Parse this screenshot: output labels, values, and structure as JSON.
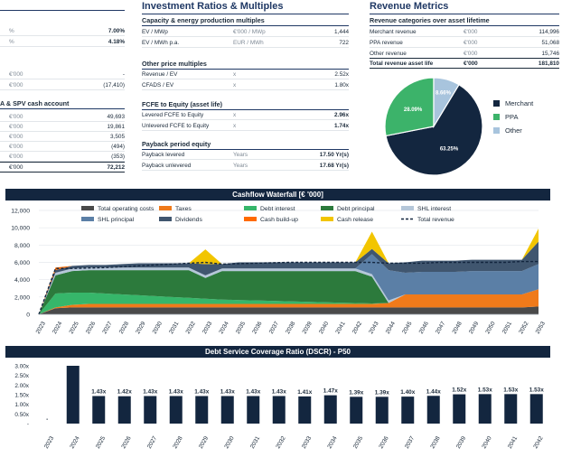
{
  "left_panel": {
    "rows_top": [
      {
        "unit": "%",
        "value": "7.00%",
        "bold": true
      },
      {
        "unit": "%",
        "value": "4.18%",
        "bold": true
      }
    ],
    "rows_mid": [
      {
        "unit": "€'000",
        "value": "-"
      },
      {
        "unit": "€'000",
        "value": "(17,410)"
      }
    ],
    "cash_title": "A & SPV cash account",
    "cash_rows": [
      {
        "unit": "€'000",
        "value": "49,693"
      },
      {
        "unit": "€'000",
        "value": "19,861"
      },
      {
        "unit": "€'000",
        "value": "3,505"
      },
      {
        "unit": "€'000",
        "value": "(494)"
      },
      {
        "unit": "€'000",
        "value": "(353)"
      }
    ],
    "cash_total": {
      "unit": "€'000",
      "value": "72,212"
    }
  },
  "investment": {
    "title": "Investment Ratios & Multiples",
    "capacity_title": "Capacity & energy production multiples",
    "capacity_rows": [
      {
        "label": "EV / MWp",
        "unit": "€'000 / MWp",
        "value": "1,444"
      },
      {
        "label": "EV / MWh p.a.",
        "unit": "EUR / MWh",
        "value": "722"
      }
    ],
    "other_title": "Other price multiples",
    "other_rows": [
      {
        "label": "Revenue / EV",
        "unit": "x",
        "value": "2.52x"
      },
      {
        "label": "CFADS / EV",
        "unit": "x",
        "value": "1.80x"
      }
    ],
    "fcfe_title": "FCFE to Equity (asset life)",
    "fcfe_rows": [
      {
        "label": "Levered FCFE to Equity",
        "unit": "x",
        "value": "2.96x"
      },
      {
        "label": "Unlevered FCFE to Equity",
        "unit": "x",
        "value": "1.74x"
      }
    ],
    "payback_title": "Payback period equity",
    "payback_rows": [
      {
        "label": "Payback levered",
        "unit": "Years",
        "value": "17.50 Yr(s)"
      },
      {
        "label": "Payback unlevered",
        "unit": "Years",
        "value": "17.68 Yr(s)"
      }
    ]
  },
  "revenue": {
    "title": "Revenue Metrics",
    "sub_title": "Revenue categories over asset lifetime",
    "rows": [
      {
        "label": "Merchant revenue",
        "unit": "€'000",
        "value": "114,996"
      },
      {
        "label": "PPA revenue",
        "unit": "€'000",
        "value": "51,068"
      },
      {
        "label": "Other revenue",
        "unit": "€'000",
        "value": "15,746"
      }
    ],
    "total": {
      "label": "Total revenue asset life",
      "unit": "€'000",
      "value": "181,810"
    }
  },
  "colors": {
    "navy": "#13263f",
    "ppa_green": "#3cb36a",
    "other_blue": "#a8c4dd",
    "opex": "#4a4a4a",
    "taxes": "#f07a1a",
    "debt_interest": "#36b66a",
    "debt_principal": "#2c7a3c",
    "shl_interest": "#b5c7d9",
    "shl_principal": "#5b7fa6",
    "dividends": "#40566f",
    "cash_buildup": "#ff6a00",
    "cash_release": "#f2c500"
  },
  "chart_data": [
    {
      "type": "pie",
      "title": "Revenue categories over asset lifetime",
      "categories": [
        "Merchant",
        "PPA",
        "Other"
      ],
      "values": [
        63.25,
        28.09,
        8.66
      ],
      "data_labels": [
        "63.25%",
        "28.09%",
        "8.66%"
      ]
    },
    {
      "type": "area",
      "title": "Cashflow Waterfall [€ '000]",
      "categories": [
        "2023",
        "2024",
        "2025",
        "2026",
        "2027",
        "2028",
        "2029",
        "2030",
        "2031",
        "2032",
        "2033",
        "2034",
        "2035",
        "2036",
        "2037",
        "2038",
        "2039",
        "2040",
        "2041",
        "2042",
        "2043",
        "2044",
        "2045",
        "2046",
        "2047",
        "2048",
        "2049",
        "2050",
        "2051",
        "2052",
        "2053"
      ],
      "yticks": [
        "0",
        "2,000",
        "4,000",
        "6,000",
        "8,000",
        "10,000",
        "12,000"
      ],
      "ylim": [
        0,
        12000
      ],
      "series": [
        {
          "name": "Total operating costs",
          "values": [
            0,
            700,
            800,
            800,
            800,
            800,
            800,
            800,
            800,
            800,
            800,
            800,
            800,
            800,
            800,
            800,
            800,
            800,
            800,
            800,
            800,
            800,
            800,
            800,
            800,
            800,
            800,
            800,
            800,
            800,
            900
          ]
        },
        {
          "name": "Taxes",
          "values": [
            0,
            100,
            300,
            400,
            400,
            400,
            400,
            400,
            400,
            400,
            400,
            400,
            400,
            400,
            400,
            400,
            400,
            400,
            400,
            400,
            400,
            500,
            1500,
            1500,
            1500,
            1500,
            1500,
            1500,
            1500,
            1500,
            2000
          ]
        },
        {
          "name": "Debt interest",
          "values": [
            0,
            1600,
            1400,
            1300,
            1200,
            1100,
            1000,
            900,
            800,
            700,
            600,
            500,
            450,
            400,
            350,
            300,
            250,
            200,
            150,
            100,
            50,
            0,
            0,
            0,
            0,
            0,
            0,
            0,
            0,
            0,
            0
          ]
        },
        {
          "name": "Debt principal",
          "values": [
            0,
            2100,
            2500,
            2600,
            2700,
            2800,
            2900,
            3000,
            3100,
            3200,
            2400,
            3300,
            3350,
            3400,
            3450,
            3500,
            3550,
            3600,
            3650,
            3700,
            3100,
            0,
            0,
            0,
            0,
            0,
            0,
            0,
            0,
            0,
            0
          ]
        },
        {
          "name": "SHL interest",
          "values": [
            0,
            300,
            300,
            300,
            300,
            300,
            300,
            300,
            300,
            300,
            300,
            300,
            300,
            300,
            300,
            300,
            300,
            300,
            300,
            300,
            300,
            300,
            0,
            0,
            0,
            0,
            0,
            0,
            0,
            0,
            0
          ]
        },
        {
          "name": "SHL principal",
          "values": [
            0,
            0,
            0,
            0,
            0,
            0,
            0,
            0,
            0,
            0,
            0,
            0,
            0,
            0,
            0,
            0,
            0,
            0,
            0,
            0,
            2300,
            3500,
            2500,
            2600,
            2600,
            2600,
            2700,
            2700,
            2700,
            2700,
            2900
          ]
        },
        {
          "name": "Dividends",
          "values": [
            0,
            300,
            300,
            300,
            300,
            400,
            500,
            500,
            500,
            500,
            1300,
            500,
            700,
            700,
            700,
            700,
            700,
            700,
            700,
            700,
            600,
            800,
            1200,
            1300,
            1300,
            1300,
            1300,
            1300,
            1300,
            1300,
            2600
          ]
        },
        {
          "name": "Cash build-up",
          "values": [
            0,
            300,
            0,
            0,
            0,
            0,
            0,
            0,
            0,
            0,
            0,
            0,
            0,
            0,
            0,
            0,
            0,
            0,
            0,
            0,
            0,
            0,
            0,
            0,
            0,
            0,
            0,
            0,
            0,
            0,
            0
          ]
        },
        {
          "name": "Cash release",
          "values": [
            0,
            0,
            0,
            0,
            0,
            0,
            0,
            0,
            0,
            0,
            1700,
            0,
            0,
            0,
            0,
            0,
            0,
            0,
            0,
            0,
            2000,
            0,
            0,
            0,
            0,
            0,
            0,
            0,
            0,
            0,
            1500
          ]
        }
      ],
      "line_series": {
        "name": "Total revenue",
        "values": [
          0,
          5300,
          5300,
          5350,
          5400,
          5500,
          5600,
          5700,
          5800,
          5900,
          6000,
          5800,
          5850,
          5900,
          5950,
          6000,
          6000,
          6000,
          6000,
          6000,
          6000,
          5900,
          5900,
          5900,
          6000,
          6000,
          6000,
          6000,
          6000,
          6100,
          6100
        ]
      }
    },
    {
      "type": "bar",
      "title": "Debt Service Coverage Ratio (DSCR) - P50",
      "categories": [
        "2023",
        "2024",
        "2025",
        "2026",
        "2027",
        "2028",
        "2029",
        "2030",
        "2031",
        "2032",
        "2033",
        "2034",
        "2035",
        "2036",
        "2037",
        "2038",
        "2039",
        "2040",
        "2041",
        "2042"
      ],
      "values": [
        0,
        3.0,
        1.43,
        1.42,
        1.43,
        1.43,
        1.43,
        1.43,
        1.43,
        1.43,
        1.41,
        1.47,
        1.39,
        1.39,
        1.4,
        1.44,
        1.52,
        1.53,
        1.53,
        1.53
      ],
      "data_labels": [
        "-",
        "",
        "1.43x",
        "1.42x",
        "1.43x",
        "1.43x",
        "1.43x",
        "1.43x",
        "1.43x",
        "1.43x",
        "1.41x",
        "1.47x",
        "1.39x",
        "1.39x",
        "1.40x",
        "1.44x",
        "1.52x",
        "1.53x",
        "1.53x",
        "1.53x"
      ],
      "yticks": [
        "-",
        "0.50x",
        "1.00x",
        "1.50x",
        "2.00x",
        "2.50x",
        "3.00x"
      ],
      "ylim": [
        0,
        3.0
      ]
    }
  ]
}
